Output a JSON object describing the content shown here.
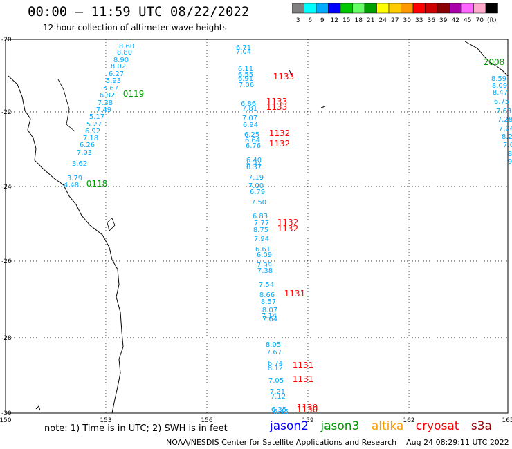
{
  "header": {
    "title": "00:00 – 11:59 UTC 08/22/2022",
    "subtitle": "12 hour collection of altimeter wave heights"
  },
  "legend": {
    "colors": [
      "#808080",
      "#00ffff",
      "#00aaff",
      "#0000ff",
      "#00c800",
      "#66ff66",
      "#00a000",
      "#ffff00",
      "#ffcc00",
      "#ff9900",
      "#ff0000",
      "#cc0000",
      "#880000",
      "#aa00aa",
      "#ff66ff",
      "#ffaacc",
      "#000000"
    ],
    "labels": [
      "3",
      "6",
      "9",
      "12",
      "15",
      "18",
      "21",
      "24",
      "27",
      "30",
      "33",
      "36",
      "39",
      "42",
      "45",
      "70",
      "(ft)"
    ]
  },
  "axes": {
    "lat_labels": [
      "-20",
      "-22",
      "-24",
      "-26",
      "-28",
      "-30"
    ],
    "lon_labels": [
      "150",
      "153",
      "156",
      "159",
      "162",
      "165"
    ]
  },
  "tracks": {
    "colors": {
      "jason3": "#00aaff",
      "cryosat": "#ff0000",
      "jason2_label": "#009900"
    },
    "track_ids": [
      "0119",
      "0118",
      "1133",
      "1133",
      "1133",
      "1132",
      "1132",
      "1132",
      "1132",
      "1131",
      "1131",
      "1131",
      "1130",
      "1130",
      "2008"
    ],
    "swh_values": [
      "8.60",
      "8.80",
      "8.90",
      "8.02",
      "6.27",
      "5.93",
      "5.67",
      "6.82",
      "7.38",
      "7.49",
      "5.17",
      "5.27",
      "6.92",
      "7.18",
      "6.26",
      "7.03",
      "3.62",
      "3.79",
      "4.48",
      "6.71",
      "7.04",
      "6.11",
      "6.55",
      "6.91",
      "7.06",
      "6.86",
      "7.81",
      "7.07",
      "6.94",
      "6.25",
      "6.64",
      "6.76",
      "6.40",
      "6.31",
      "6.37",
      "7.19",
      "7.00",
      "6.79",
      "7.50",
      "6.83",
      "7.77",
      "8.75",
      "7.94",
      "6.61",
      "6.09",
      "7.99",
      "7.38",
      "7.54",
      "8.66",
      "8.57",
      "8.07",
      "7.14",
      "7.64",
      "8.05",
      "7.67",
      "6.74",
      "8.12",
      "7.05",
      "7.21",
      "7.12",
      "6.35",
      "6.45",
      "8.59",
      "8.09",
      "8.47",
      "6.75",
      "7.63",
      "7.28",
      "7.04",
      "8.2",
      "7.0",
      "8",
      "9",
      "9"
    ]
  },
  "footer": {
    "note": "note:  1) Time is in UTC; 2) SWH is in feet",
    "satellites": [
      {
        "name": "jason2",
        "color": "#0000ff"
      },
      {
        "name": "jason3",
        "color": "#009900"
      },
      {
        "name": "altika",
        "color": "#ff9900"
      },
      {
        "name": "cryosat",
        "color": "#ff0000"
      },
      {
        "name": "s3a",
        "color": "#990000"
      }
    ],
    "credit": "NOAA/NESDIS Center for Satellite Applications and Research",
    "timestamp": "Aug 24 08:29:11 UTC 2022"
  }
}
